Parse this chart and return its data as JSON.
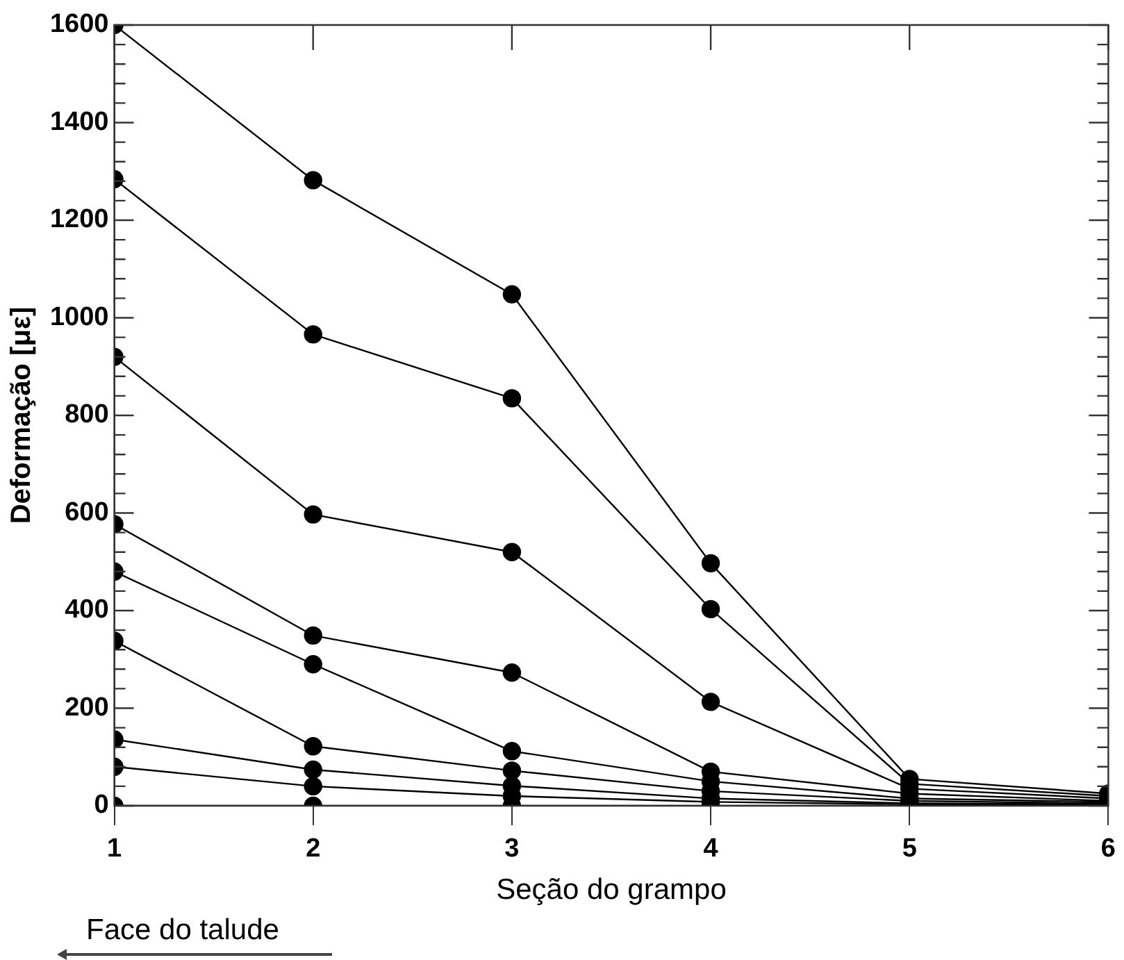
{
  "chart_data": {
    "type": "line",
    "xlabel": "Seção do grampo",
    "ylabel": "Deformação [με]",
    "x": [
      1,
      2,
      3,
      4,
      5,
      6
    ],
    "xlim": [
      1,
      6
    ],
    "xticks": [
      1,
      2,
      3,
      4,
      5,
      6
    ],
    "ylim": [
      0,
      1600
    ],
    "yticks": [
      0,
      {
        "value": 40,
        "label": null
      },
      {
        "value": 80,
        "label": null
      },
      {
        "value": 120,
        "label": null
      },
      {
        "value": 160,
        "label": null
      },
      200,
      {
        "value": 240,
        "label": null
      },
      {
        "value": 280,
        "label": null
      },
      {
        "value": 320,
        "label": null
      },
      {
        "value": 360,
        "label": null
      },
      400,
      {
        "value": 440,
        "label": null
      },
      {
        "value": 480,
        "label": null
      },
      {
        "value": 520,
        "label": null
      },
      {
        "value": 560,
        "label": null
      },
      600,
      {
        "value": 640,
        "label": null
      },
      {
        "value": 680,
        "label": null
      },
      {
        "value": 720,
        "label": null
      },
      {
        "value": 760,
        "label": null
      },
      800,
      {
        "value": 840,
        "label": null
      },
      {
        "value": 880,
        "label": null
      },
      {
        "value": 920,
        "label": null
      },
      {
        "value": 960,
        "label": null
      },
      1000,
      {
        "value": 1040,
        "label": null
      },
      {
        "value": 1080,
        "label": null
      },
      {
        "value": 1120,
        "label": null
      },
      {
        "value": 1160,
        "label": null
      },
      1200,
      {
        "value": 1240,
        "label": null
      },
      {
        "value": 1280,
        "label": null
      },
      {
        "value": 1320,
        "label": null
      },
      {
        "value": 1360,
        "label": null
      },
      1400,
      {
        "value": 1440,
        "label": null
      },
      {
        "value": 1480,
        "label": null
      },
      {
        "value": 1520,
        "label": null
      },
      {
        "value": 1560,
        "label": null
      },
      1600
    ],
    "marker": "circle",
    "line_style": "solid",
    "grid": false,
    "legend": false,
    "annotations": [
      "Face do talude"
    ],
    "series": [
      {
        "color": "#000000",
        "values": [
          1600,
          1282,
          1048,
          497,
          55,
          25
        ]
      },
      {
        "color": "#000000",
        "values": [
          1284,
          966,
          835,
          403,
          45,
          20
        ]
      },
      {
        "color": "#000000",
        "values": [
          920,
          597,
          520,
          213,
          35,
          15
        ]
      },
      {
        "color": "#000000",
        "values": [
          577,
          349,
          273,
          70,
          25,
          10
        ]
      },
      {
        "color": "#000000",
        "values": [
          480,
          290,
          112,
          50,
          15,
          8
        ]
      },
      {
        "color": "#000000",
        "values": [
          338,
          122,
          72,
          30,
          10,
          5
        ]
      },
      {
        "color": "#000000",
        "values": [
          136,
          74,
          41,
          15,
          5,
          3
        ]
      },
      {
        "color": "#000000",
        "values": [
          80,
          40,
          20,
          8,
          3,
          2
        ]
      },
      {
        "color": "#000000",
        "values": [
          0,
          0,
          0,
          0,
          0,
          0
        ]
      }
    ]
  }
}
